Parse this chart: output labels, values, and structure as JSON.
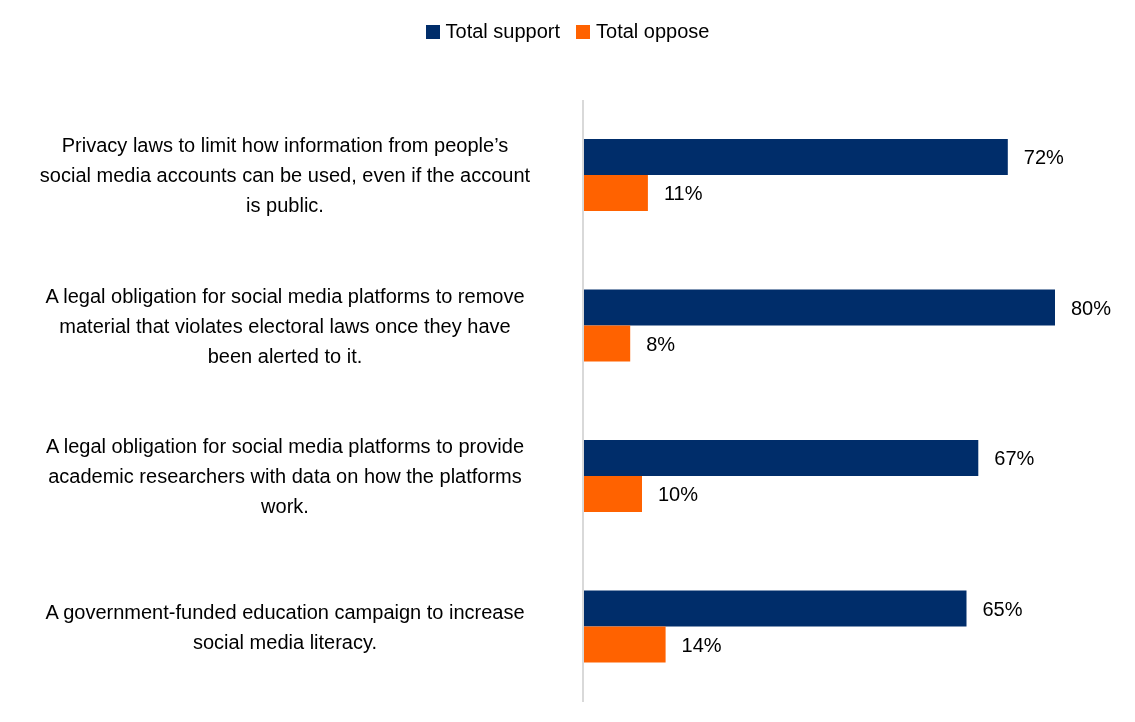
{
  "chart_data": {
    "type": "bar",
    "orientation": "horizontal",
    "categories": [
      "Privacy laws to limit how information from people’s social media accounts can be used, even if the account is public.",
      "A legal obligation for social media platforms to remove material that violates electoral laws once they have been alerted to it.",
      "A legal obligation for social media platforms to provide academic researchers with data on how the platforms work.",
      "A government-funded education campaign to increase social media literacy."
    ],
    "series": [
      {
        "name": "Total support",
        "color": "#002d6a",
        "values": [
          72,
          80,
          67,
          65
        ],
        "value_labels": [
          "72%",
          "80%",
          "67%",
          "65%"
        ]
      },
      {
        "name": "Total oppose",
        "color": "#ff6200",
        "values": [
          11,
          8,
          10,
          14
        ],
        "value_labels": [
          "11%",
          "8%",
          "10%",
          "14%"
        ]
      }
    ],
    "tick_labels": "y",
    "grid": false,
    "legend": "top"
  }
}
